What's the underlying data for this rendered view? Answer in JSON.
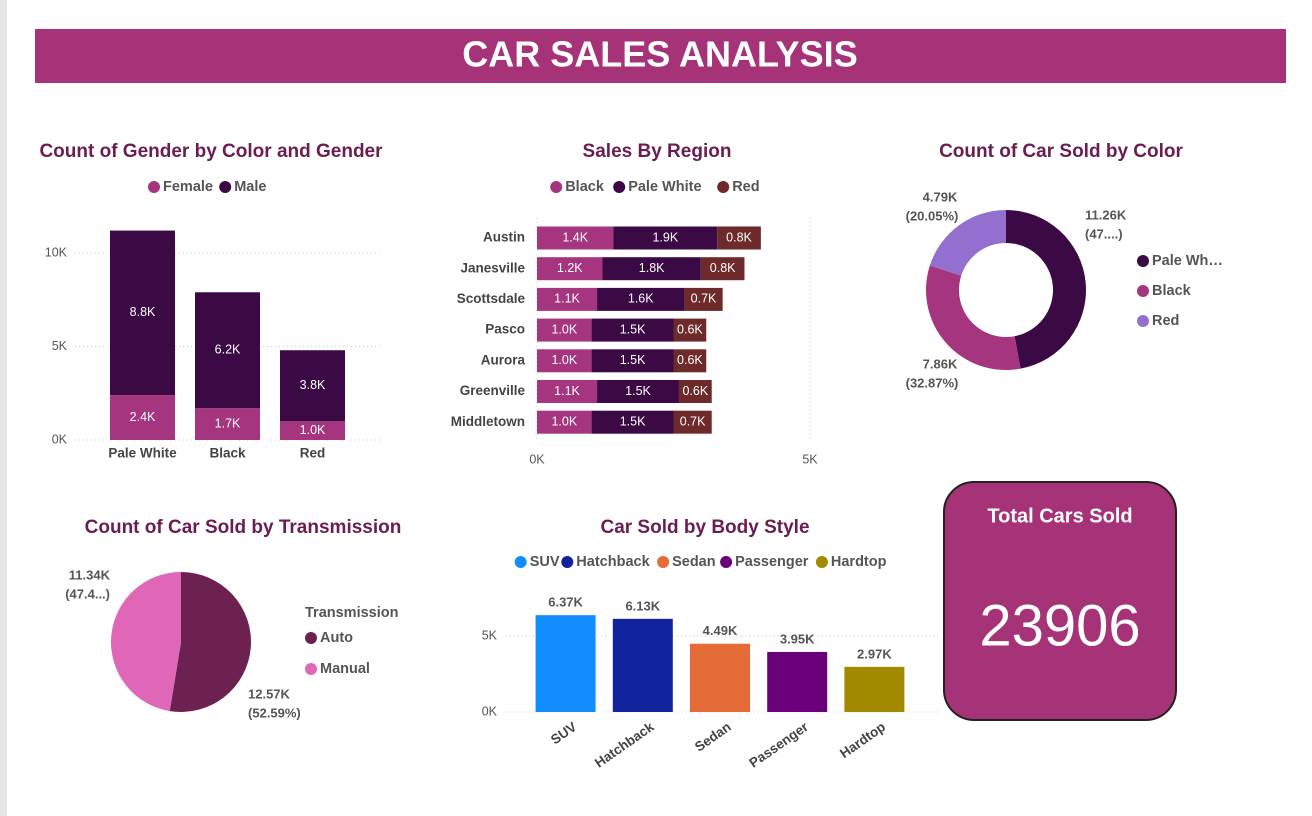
{
  "header": {
    "title": "CAR SALES ANALYSIS"
  },
  "card": {
    "title": "Total Cars Sold",
    "value": 23906
  },
  "chart_data": [
    {
      "type": "bar",
      "stacked": true,
      "orientation": "vertical",
      "title": "Count of Gender by Color and Gender",
      "categories": [
        "Pale White",
        "Black",
        "Red"
      ],
      "series": [
        {
          "name": "Female",
          "color": "#a4357e",
          "values": [
            2400,
            1700,
            1000
          ],
          "value_labels": [
            "2.4K",
            "1.7K",
            "1.0K"
          ]
        },
        {
          "name": "Male",
          "color": "#3b0a45",
          "values": [
            8800,
            6200,
            3800
          ],
          "value_labels": [
            "8.8K",
            "6.2K",
            "3.8K"
          ]
        }
      ],
      "ylim": [
        0,
        12000
      ],
      "yticks": [
        {
          "value": 0,
          "label": "0K"
        },
        {
          "value": 5000,
          "label": "5K"
        },
        {
          "value": 10000,
          "label": "10K"
        }
      ],
      "grid": true
    },
    {
      "type": "bar",
      "stacked": true,
      "orientation": "horizontal",
      "title": "Sales By Region",
      "categories": [
        "Austin",
        "Janesville",
        "Scottsdale",
        "Pasco",
        "Aurora",
        "Greenville",
        "Middletown"
      ],
      "series": [
        {
          "name": "Black",
          "color": "#a4357e",
          "values": [
            1400,
            1200,
            1100,
            1000,
            1000,
            1100,
            1000
          ],
          "value_labels": [
            "1.4K",
            "1.2K",
            "1.1K",
            "1.0K",
            "1.0K",
            "1.1K",
            "1.0K"
          ]
        },
        {
          "name": "Pale White",
          "color": "#3b0a45",
          "values": [
            1900,
            1800,
            1600,
            1500,
            1500,
            1500,
            1500
          ],
          "value_labels": [
            "1.9K",
            "1.8K",
            "1.6K",
            "1.5K",
            "1.5K",
            "1.5K",
            "1.5K"
          ]
        },
        {
          "name": "Red",
          "color": "#6e2a2a",
          "values": [
            800,
            800,
            700,
            600,
            600,
            600,
            700
          ],
          "value_labels": [
            "0.8K",
            "0.8K",
            "0.7K",
            "0.6K",
            "0.6K",
            "0.6K",
            "0.7K"
          ]
        }
      ],
      "xlim": [
        0,
        5000
      ],
      "xticks": [
        {
          "value": 0,
          "label": "0K"
        },
        {
          "value": 5000,
          "label": "5K"
        }
      ],
      "grid": true
    },
    {
      "type": "donut",
      "title": "Count of Car Sold by Color",
      "categories": [
        "Pale Wh…",
        "Black",
        "Red"
      ],
      "values": [
        11260,
        7860,
        4790
      ],
      "value_labels": [
        "11.26K",
        "7.86K",
        "4.79K"
      ],
      "percent_labels": [
        "(47....)",
        "(32.87%)",
        "(20.05%)"
      ],
      "colors": [
        "#3b0a45",
        "#a4357e",
        "#9370d0"
      ]
    },
    {
      "type": "pie",
      "title": "Count of Car Sold by Transmission",
      "legend_title": "Transmission",
      "categories": [
        "Auto",
        "Manual"
      ],
      "values": [
        12570,
        11340
      ],
      "value_labels": [
        "12.57K",
        "11.34K"
      ],
      "percent_labels": [
        "(52.59%)",
        "(47.4...)"
      ],
      "colors": [
        "#6d2150",
        "#e066b8"
      ]
    },
    {
      "type": "bar",
      "stacked": false,
      "orientation": "vertical",
      "title": "Car Sold by Body Style",
      "categories": [
        "SUV",
        "Hatchback",
        "Sedan",
        "Passenger",
        "Hardtop"
      ],
      "values": [
        6370,
        6130,
        4490,
        3950,
        2970
      ],
      "value_labels": [
        "6.37K",
        "6.13K",
        "4.49K",
        "3.95K",
        "2.97K"
      ],
      "colors": [
        "#118dff",
        "#12239e",
        "#e66c37",
        "#6b007b",
        "#a28900"
      ],
      "ylim": [
        0,
        7000
      ],
      "yticks": [
        {
          "value": 0,
          "label": "0K"
        },
        {
          "value": 5000,
          "label": "5K"
        }
      ],
      "grid": true
    }
  ]
}
